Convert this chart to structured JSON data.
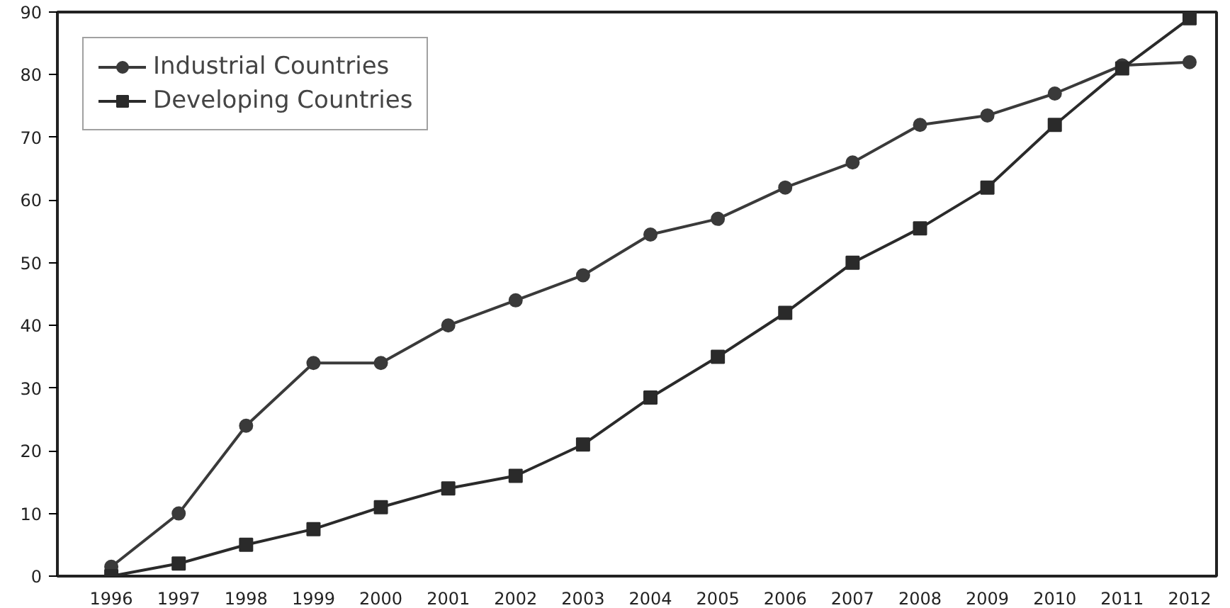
{
  "chart_data": {
    "type": "line",
    "categories": [
      "1996",
      "1997",
      "1998",
      "1999",
      "2000",
      "2001",
      "2002",
      "2003",
      "2004",
      "2005",
      "2006",
      "2007",
      "2008",
      "2009",
      "2010",
      "2011",
      "2012"
    ],
    "series": [
      {
        "name": "Industrial Countries",
        "color": "#3a3a3a",
        "marker": "circle",
        "values": [
          1.5,
          10,
          24,
          34,
          34,
          40,
          44,
          48,
          54.5,
          57,
          62,
          66,
          72,
          73.5,
          77,
          81.5,
          82
        ]
      },
      {
        "name": "Developing Countries",
        "color": "#2a2a2a",
        "marker": "square",
        "values": [
          0,
          2,
          5,
          7.5,
          11,
          14,
          16,
          21,
          28.5,
          35,
          42,
          50,
          55.5,
          62,
          72,
          81,
          89
        ]
      }
    ],
    "ylim": [
      0,
      90
    ],
    "yticks": [
      0,
      10,
      20,
      30,
      40,
      50,
      60,
      70,
      80,
      90
    ],
    "grid": false,
    "legend": "top left",
    "line_style": "solid"
  }
}
